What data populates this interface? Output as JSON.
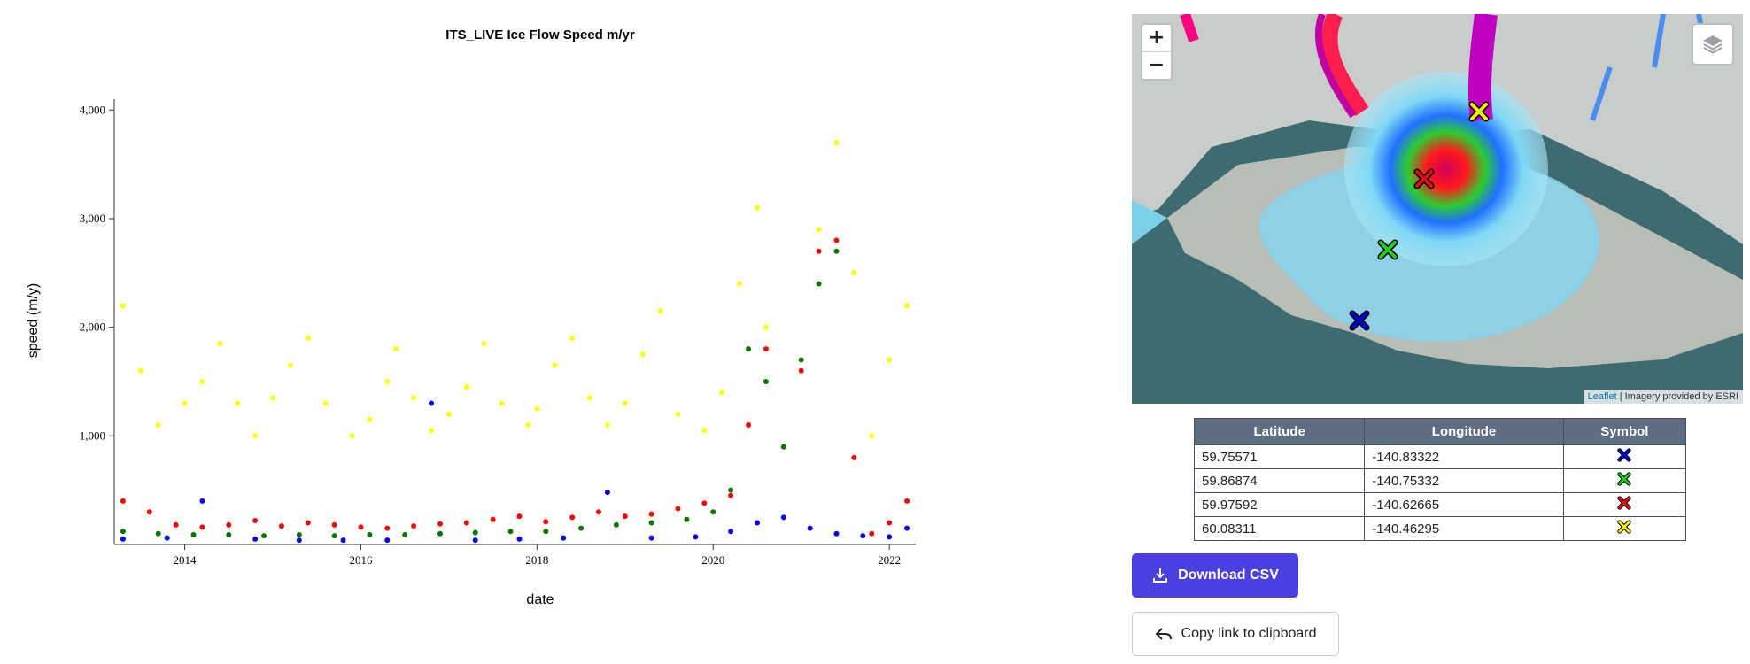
{
  "chart_data": {
    "type": "scatter",
    "title": "ITS_LIVE Ice Flow Speed m/yr",
    "xlabel": "date",
    "ylabel": "speed (m/y)",
    "xlim": [
      2013.2,
      2022.3
    ],
    "ylim": [
      0,
      4100
    ],
    "x_ticks": [
      "2014",
      "2016",
      "2018",
      "2020",
      "2022"
    ],
    "y_ticks": [
      "1,000",
      "2,000",
      "3,000",
      "4,000"
    ],
    "series": [
      {
        "color": "#ffff00",
        "x": [
          2013.3,
          2013.5,
          2013.7,
          2014.0,
          2014.2,
          2014.4,
          2014.6,
          2014.8,
          2015.0,
          2015.2,
          2015.4,
          2015.6,
          2015.9,
          2016.1,
          2016.3,
          2016.4,
          2016.6,
          2016.8,
          2017.0,
          2017.2,
          2017.4,
          2017.6,
          2017.9,
          2018.0,
          2018.2,
          2018.4,
          2018.6,
          2018.8,
          2019.0,
          2019.2,
          2019.4,
          2019.6,
          2019.9,
          2020.1,
          2020.3,
          2020.5,
          2020.6,
          2020.8,
          2021.0,
          2021.2,
          2021.4,
          2021.6,
          2021.8,
          2022.0,
          2022.2
        ],
        "y": [
          2200,
          1600,
          1100,
          1300,
          1500,
          1850,
          1300,
          1000,
          1350,
          1650,
          1900,
          1300,
          1000,
          1150,
          1500,
          1800,
          1350,
          1050,
          1200,
          1450,
          1850,
          1300,
          1100,
          1250,
          1650,
          1900,
          1350,
          1100,
          1300,
          1750,
          2150,
          1200,
          1050,
          1400,
          2400,
          3100,
          2000,
          900,
          1700,
          2900,
          3700,
          2500,
          1000,
          1700,
          2200
        ]
      },
      {
        "color": "#ff0000",
        "x": [
          2013.3,
          2013.6,
          2013.9,
          2014.2,
          2014.5,
          2014.8,
          2015.1,
          2015.4,
          2015.7,
          2016.0,
          2016.3,
          2016.6,
          2016.9,
          2017.2,
          2017.5,
          2017.8,
          2018.1,
          2018.4,
          2018.7,
          2019.0,
          2019.3,
          2019.6,
          2019.9,
          2020.2,
          2020.4,
          2020.6,
          2020.8,
          2021.0,
          2021.2,
          2021.4,
          2021.6,
          2021.8,
          2022.0,
          2022.2
        ],
        "y": [
          400,
          300,
          180,
          160,
          180,
          220,
          170,
          200,
          180,
          160,
          150,
          170,
          190,
          200,
          230,
          260,
          210,
          250,
          300,
          260,
          280,
          330,
          380,
          450,
          1100,
          1800,
          900,
          1600,
          2700,
          2800,
          800,
          100,
          200,
          400
        ]
      },
      {
        "color": "#007700",
        "x": [
          2013.3,
          2013.7,
          2014.1,
          2014.5,
          2014.9,
          2015.3,
          2015.7,
          2016.1,
          2016.5,
          2016.9,
          2017.3,
          2017.7,
          2018.1,
          2018.5,
          2018.9,
          2019.3,
          2019.7,
          2020.0,
          2020.2,
          2020.4,
          2020.6,
          2020.8,
          2021.0,
          2021.2,
          2021.4
        ],
        "y": [
          120,
          100,
          90,
          90,
          80,
          90,
          80,
          90,
          90,
          100,
          110,
          120,
          120,
          150,
          180,
          200,
          230,
          300,
          500,
          1800,
          1500,
          900,
          1700,
          2400,
          2700
        ]
      },
      {
        "color": "#0000ff",
        "x": [
          2013.3,
          2013.8,
          2014.2,
          2014.8,
          2015.3,
          2015.8,
          2016.3,
          2016.8,
          2017.3,
          2017.8,
          2018.3,
          2018.8,
          2019.3,
          2019.8,
          2020.2,
          2020.5,
          2020.8,
          2021.1,
          2021.4,
          2021.7,
          2022.0,
          2022.2
        ],
        "y": [
          50,
          60,
          400,
          50,
          40,
          40,
          40,
          1300,
          40,
          50,
          60,
          480,
          60,
          70,
          120,
          200,
          250,
          150,
          100,
          80,
          70,
          150
        ]
      }
    ]
  },
  "map": {
    "zoom_in": "+",
    "zoom_out": "−",
    "attribution_link": "Leaflet",
    "attribution_text": "| Imagery provided by ESRI",
    "markers": [
      {
        "color": "#0000cc",
        "icon": "x-marker-icon"
      },
      {
        "color": "#22cc22",
        "icon": "x-marker-icon"
      },
      {
        "color": "#e01010",
        "icon": "x-marker-icon"
      },
      {
        "color": "#f0f000",
        "icon": "x-marker-icon"
      }
    ]
  },
  "table": {
    "headers": [
      "Latitude",
      "Longitude",
      "Symbol"
    ],
    "rows": [
      {
        "lat": "59.75571",
        "lon": "-140.83322",
        "color": "#0000cc"
      },
      {
        "lat": "59.86874",
        "lon": "-140.75332",
        "color": "#22cc22"
      },
      {
        "lat": "59.97592",
        "lon": "-140.62665",
        "color": "#e01010"
      },
      {
        "lat": "60.08311",
        "lon": "-140.46295",
        "color": "#f0f000"
      }
    ]
  },
  "buttons": {
    "download": "Download CSV",
    "copy_link": "Copy link to clipboard"
  }
}
